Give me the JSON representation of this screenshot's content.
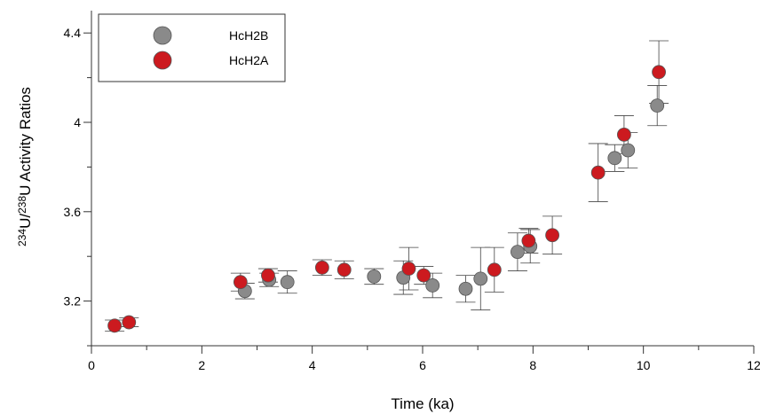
{
  "chart_data": {
    "type": "scatter",
    "title": "",
    "xlabel": "Time (ka)",
    "ylabel_parts": [
      "234",
      "U/",
      "238",
      "U Activity Ratios"
    ],
    "xlim": [
      0,
      12
    ],
    "ylim": [
      3.0,
      4.5
    ],
    "x_ticks": [
      0,
      2,
      4,
      6,
      8,
      10,
      12
    ],
    "x_minor_step": 1,
    "y_ticks": [
      3.2,
      3.6,
      4.0,
      4.4
    ],
    "y_tick_labels": [
      "3.2",
      "3.6",
      "4",
      "4.4"
    ],
    "y_minor_step": 0.2,
    "grid": false,
    "legend_position": "top-left",
    "series": [
      {
        "name": "HcH2B",
        "color": "#8a8a8a",
        "points": [
          {
            "x": 2.78,
            "y": 3.245,
            "err": 0.035
          },
          {
            "x": 3.22,
            "y": 3.295,
            "err": 0.03
          },
          {
            "x": 3.55,
            "y": 3.285,
            "err": 0.05
          },
          {
            "x": 5.12,
            "y": 3.31,
            "err": 0.035
          },
          {
            "x": 5.65,
            "y": 3.305,
            "err": 0.075
          },
          {
            "x": 6.18,
            "y": 3.27,
            "err": 0.055
          },
          {
            "x": 6.78,
            "y": 3.255,
            "err": 0.06
          },
          {
            "x": 7.05,
            "y": 3.3,
            "err": 0.14
          },
          {
            "x": 7.72,
            "y": 3.42,
            "err": 0.085
          },
          {
            "x": 7.95,
            "y": 3.445,
            "err": 0.075
          },
          {
            "x": 9.48,
            "y": 3.84,
            "err": 0.06
          },
          {
            "x": 9.72,
            "y": 3.875,
            "err": 0.08
          },
          {
            "x": 10.25,
            "y": 4.075,
            "err": 0.09
          }
        ]
      },
      {
        "name": "HcH2A",
        "color": "#cc1a1f",
        "points": [
          {
            "x": 0.42,
            "y": 3.09,
            "err": 0.025
          },
          {
            "x": 0.68,
            "y": 3.105,
            "err": 0.02
          },
          {
            "x": 2.7,
            "y": 3.285,
            "err": 0.04
          },
          {
            "x": 3.2,
            "y": 3.315,
            "err": 0.03
          },
          {
            "x": 4.18,
            "y": 3.35,
            "err": 0.035
          },
          {
            "x": 4.58,
            "y": 3.34,
            "err": 0.04
          },
          {
            "x": 5.75,
            "y": 3.345,
            "err": 0.095
          },
          {
            "x": 6.02,
            "y": 3.315,
            "err": 0.04
          },
          {
            "x": 7.3,
            "y": 3.34,
            "err": 0.1
          },
          {
            "x": 7.92,
            "y": 3.47,
            "err": 0.055
          },
          {
            "x": 8.35,
            "y": 3.495,
            "err": 0.085
          },
          {
            "x": 9.18,
            "y": 3.775,
            "err": 0.13
          },
          {
            "x": 9.65,
            "y": 3.945,
            "err": 0.085
          },
          {
            "x": 10.28,
            "y": 4.225,
            "err": 0.14
          }
        ]
      }
    ]
  }
}
